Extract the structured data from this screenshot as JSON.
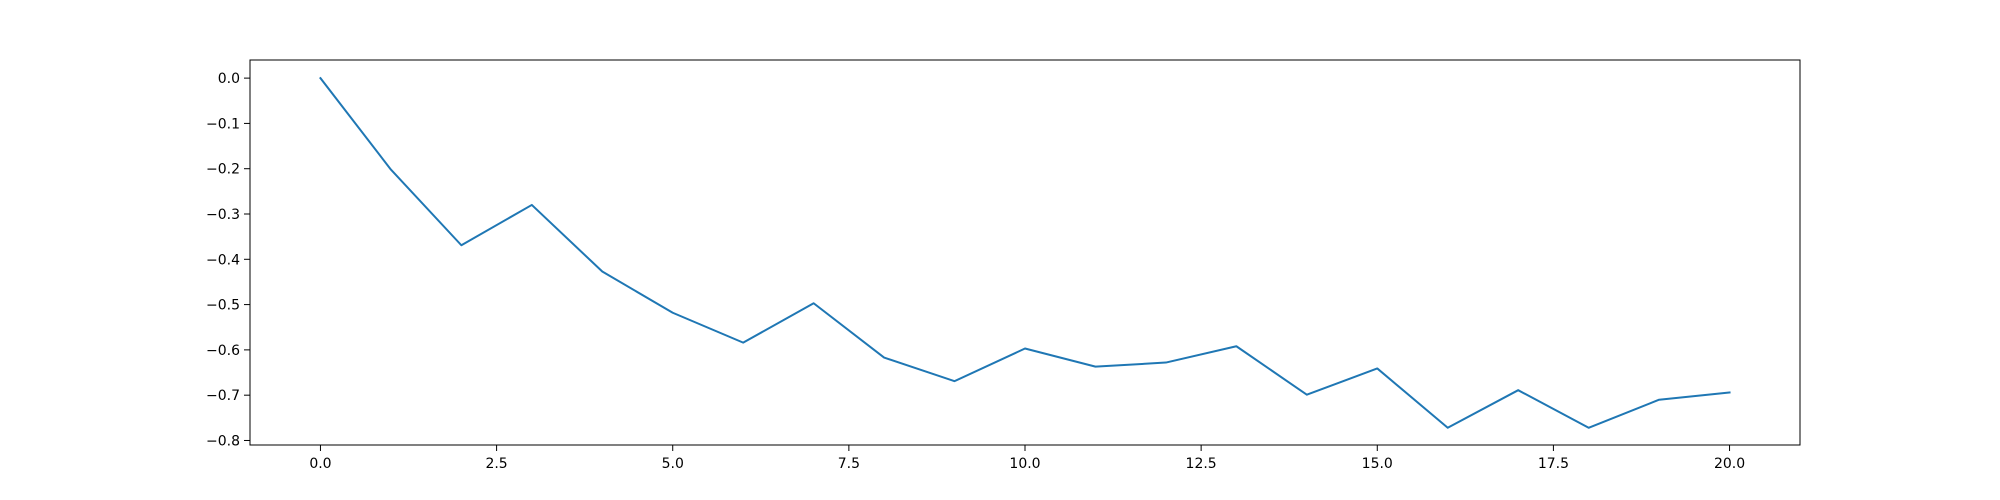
{
  "chart_data": {
    "type": "line",
    "title": "",
    "xlabel": "",
    "ylabel": "",
    "xlim": [
      -1.0,
      21.0
    ],
    "ylim": [
      -0.81,
      0.04
    ],
    "grid": false,
    "line_color": "#1f77b4",
    "x_ticks": [
      0.0,
      2.5,
      5.0,
      7.5,
      10.0,
      12.5,
      15.0,
      17.5,
      20.0
    ],
    "x_tick_labels": [
      "0.0",
      "2.5",
      "5.0",
      "7.5",
      "10.0",
      "12.5",
      "15.0",
      "17.5",
      "20.0"
    ],
    "y_ticks": [
      0.0,
      -0.1,
      -0.2,
      -0.3,
      -0.4,
      -0.5,
      -0.6,
      -0.7,
      -0.8
    ],
    "y_tick_labels": [
      "0.0",
      "−0.1",
      "−0.2",
      "−0.3",
      "−0.4",
      "−0.5",
      "−0.6",
      "−0.7",
      "−0.8"
    ],
    "series": [
      {
        "x": [
          0,
          1,
          2,
          3,
          4,
          5,
          6,
          7,
          8,
          9,
          10,
          11,
          12,
          13,
          14,
          15,
          16,
          17,
          18,
          19,
          20
        ],
        "y": [
          0.0,
          -0.202,
          -0.369,
          -0.28,
          -0.427,
          -0.518,
          -0.584,
          -0.497,
          -0.617,
          -0.669,
          -0.597,
          -0.637,
          -0.628,
          -0.592,
          -0.699,
          -0.641,
          -0.772,
          -0.689,
          -0.772,
          -0.71,
          -0.694
        ]
      }
    ]
  }
}
